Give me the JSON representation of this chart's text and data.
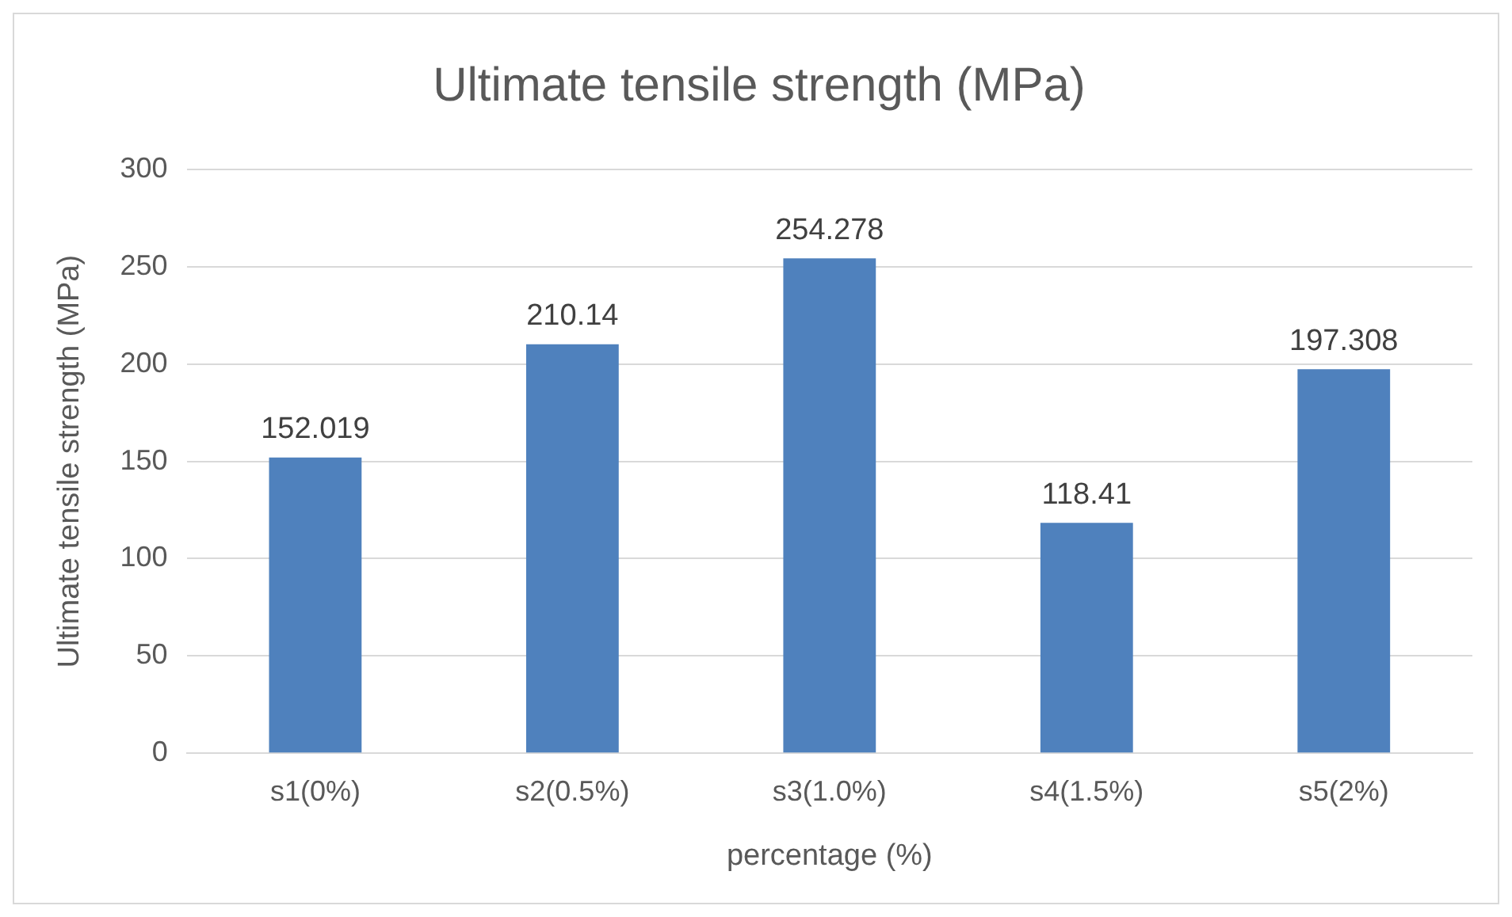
{
  "chart_data": {
    "type": "bar",
    "title": "Ultimate tensile strength (MPa)",
    "xlabel": "percentage (%)",
    "ylabel": "Ultimate tensile strength (MPa)",
    "categories": [
      "s1(0%)",
      "s2(0.5%)",
      "s3(1.0%)",
      "s4(1.5%)",
      "s5(2%)"
    ],
    "values": [
      152.019,
      210.14,
      254.278,
      118.41,
      197.308
    ],
    "color": "#4f81bd",
    "ylim": [
      0,
      300
    ],
    "yticks": [
      0,
      50,
      100,
      150,
      200,
      250,
      300
    ],
    "grid": "y",
    "data_labels": true,
    "legend": false
  }
}
